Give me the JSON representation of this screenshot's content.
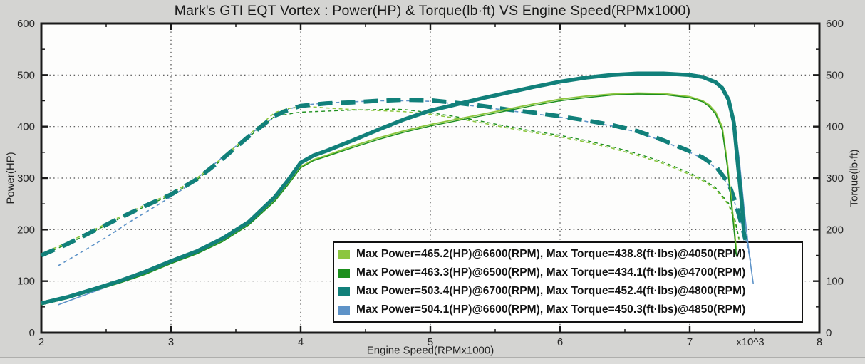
{
  "title": "Mark's GTI EQT Vortex : Power(HP) & Torque(lb·ft) VS Engine Speed(RPMx1000)",
  "axes": {
    "x": {
      "label": "Engine Speed(RPMx1000)",
      "min": 2,
      "max": 8,
      "major_ticks": [
        2,
        3,
        4,
        5,
        6,
        7,
        8
      ],
      "minor_ticks": [
        2.5,
        3.5,
        4.5,
        5.5,
        6.5,
        7.5
      ],
      "exponent_label": "x10^3"
    },
    "y_left": {
      "label": "Power(HP)",
      "min": 0,
      "max": 600,
      "major_ticks": [
        0,
        100,
        200,
        300,
        400,
        500,
        600
      ],
      "minor_ticks": [
        50,
        150,
        250,
        350,
        450,
        550
      ]
    },
    "y_right": {
      "label": "Torque(lb·ft)",
      "min": 0,
      "max": 600,
      "major_ticks": [
        0,
        100,
        200,
        300,
        400,
        500,
        600
      ],
      "minor_ticks": [
        50,
        150,
        250,
        350,
        450,
        550
      ]
    }
  },
  "legend": {
    "items": [
      {
        "color": "#8cc63f",
        "label": "Max Power=465.2(HP)@6600(RPM), Max Torque=438.8(ft·lbs)@4050(RPM)"
      },
      {
        "color": "#1d8f1d",
        "label": "Max Power=463.3(HP)@6500(RPM), Max Torque=434.1(ft·lbs)@4700(RPM)"
      },
      {
        "color": "#11807a",
        "label": "Max Power=503.4(HP)@6700(RPM), Max Torque=452.4(ft·lbs)@4800(RPM)"
      },
      {
        "color": "#5e93c8",
        "label": "Max Power=504.1(HP)@6600(RPM), Max Torque=450.3(ft·lbs)@4850(RPM)"
      }
    ]
  },
  "colors": {
    "background": "#d4d4d2",
    "plot_background": "#fdfdfc",
    "frame": "#1a1a1a",
    "grid": "#4a4a4a",
    "tick_label": "#2a2a2a"
  },
  "chart_data": {
    "type": "line",
    "title": "Mark's GTI EQT Vortex : Power(HP) & Torque(lb·ft) VS Engine Speed(RPMx1000)",
    "xlabel": "Engine Speed(RPMx1000)",
    "ylabel_left": "Power(HP)",
    "ylabel_right": "Torque(lb·ft)",
    "xlim": [
      2,
      8
    ],
    "ylim": [
      0,
      600
    ],
    "grid": "dotted",
    "legend_position": "lower-right",
    "peaks": [
      {
        "run": "run1",
        "max_power_hp": 465.2,
        "max_power_rpm": 6600,
        "max_torque_ftlbs": 438.8,
        "max_torque_rpm": 4050
      },
      {
        "run": "run2",
        "max_power_hp": 463.3,
        "max_power_rpm": 6500,
        "max_torque_ftlbs": 434.1,
        "max_torque_rpm": 4700
      },
      {
        "run": "run3",
        "max_power_hp": 503.4,
        "max_power_rpm": 6700,
        "max_torque_ftlbs": 452.4,
        "max_torque_rpm": 4800
      },
      {
        "run": "run4",
        "max_power_hp": 504.1,
        "max_power_rpm": 6600,
        "max_torque_ftlbs": 450.3,
        "max_torque_rpm": 4850
      }
    ],
    "series": [
      {
        "name": "run4-torque",
        "axis": "torque",
        "color": "#5e93c8",
        "style": "dashed",
        "width": 1.6,
        "points": [
          [
            2.13,
            130
          ],
          [
            2.3,
            155
          ],
          [
            2.5,
            185
          ],
          [
            2.7,
            218
          ],
          [
            2.9,
            248
          ],
          [
            3.1,
            280
          ],
          [
            3.3,
            320
          ],
          [
            3.5,
            362
          ],
          [
            3.7,
            403
          ],
          [
            3.9,
            433
          ],
          [
            4.0,
            441
          ],
          [
            4.2,
            446
          ],
          [
            4.4,
            448
          ],
          [
            4.6,
            450
          ],
          [
            4.85,
            450
          ],
          [
            5.0,
            449
          ],
          [
            5.2,
            444
          ],
          [
            5.4,
            438
          ],
          [
            5.6,
            431
          ],
          [
            5.8,
            425
          ],
          [
            6.0,
            418
          ],
          [
            6.2,
            410
          ],
          [
            6.4,
            401
          ],
          [
            6.6,
            389
          ],
          [
            6.8,
            371
          ],
          [
            7.0,
            350
          ],
          [
            7.1,
            338
          ],
          [
            7.2,
            320
          ],
          [
            7.3,
            286
          ],
          [
            7.35,
            250
          ],
          [
            7.42,
            195
          ],
          [
            7.47,
            140
          ]
        ]
      },
      {
        "name": "run1-torque",
        "axis": "torque",
        "color": "#8cc63f",
        "style": "dashed",
        "width": 1.6,
        "points": [
          [
            2.0,
            153
          ],
          [
            2.2,
            175
          ],
          [
            2.4,
            199
          ],
          [
            2.6,
            224
          ],
          [
            2.8,
            248
          ],
          [
            3.0,
            270
          ],
          [
            3.2,
            300
          ],
          [
            3.4,
            340
          ],
          [
            3.6,
            384
          ],
          [
            3.8,
            427
          ],
          [
            3.9,
            435
          ],
          [
            4.05,
            439
          ],
          [
            4.2,
            436
          ],
          [
            4.4,
            433
          ],
          [
            4.6,
            431
          ],
          [
            4.8,
            429
          ],
          [
            5.0,
            424
          ],
          [
            5.2,
            416
          ],
          [
            5.4,
            407
          ],
          [
            5.6,
            397
          ],
          [
            5.8,
            388
          ],
          [
            6.0,
            380
          ],
          [
            6.2,
            370
          ],
          [
            6.4,
            358
          ],
          [
            6.6,
            344
          ],
          [
            6.8,
            328
          ],
          [
            7.0,
            307
          ],
          [
            7.1,
            295
          ],
          [
            7.2,
            278
          ],
          [
            7.3,
            248
          ],
          [
            7.35,
            215
          ],
          [
            7.38,
            180
          ]
        ]
      },
      {
        "name": "run2-torque",
        "axis": "torque",
        "color": "#1d8f1d",
        "style": "dashed",
        "width": 1.4,
        "points": [
          [
            2.0,
            150
          ],
          [
            2.2,
            172
          ],
          [
            2.4,
            196
          ],
          [
            2.6,
            221
          ],
          [
            2.8,
            245
          ],
          [
            3.0,
            267
          ],
          [
            3.2,
            297
          ],
          [
            3.4,
            337
          ],
          [
            3.6,
            380
          ],
          [
            3.8,
            420
          ],
          [
            4.0,
            428
          ],
          [
            4.2,
            430
          ],
          [
            4.4,
            432
          ],
          [
            4.6,
            433
          ],
          [
            4.7,
            434
          ],
          [
            4.8,
            433
          ],
          [
            5.0,
            427
          ],
          [
            5.2,
            419
          ],
          [
            5.4,
            410
          ],
          [
            5.6,
            400
          ],
          [
            5.8,
            391
          ],
          [
            6.0,
            383
          ],
          [
            6.2,
            373
          ],
          [
            6.4,
            361
          ],
          [
            6.6,
            347
          ],
          [
            6.8,
            331
          ],
          [
            7.0,
            310
          ],
          [
            7.1,
            298
          ],
          [
            7.2,
            281
          ],
          [
            7.3,
            251
          ],
          [
            7.35,
            218
          ],
          [
            7.38,
            183
          ]
        ]
      },
      {
        "name": "run3-torque",
        "axis": "torque",
        "color": "#11807a",
        "style": "dashed-thick",
        "width": 6,
        "points": [
          [
            2.0,
            150
          ],
          [
            2.2,
            172
          ],
          [
            2.4,
            197
          ],
          [
            2.6,
            222
          ],
          [
            2.8,
            246
          ],
          [
            3.0,
            268
          ],
          [
            3.2,
            298
          ],
          [
            3.4,
            338
          ],
          [
            3.6,
            381
          ],
          [
            3.8,
            421
          ],
          [
            3.9,
            432
          ],
          [
            4.0,
            440
          ],
          [
            4.2,
            445
          ],
          [
            4.4,
            447
          ],
          [
            4.6,
            450
          ],
          [
            4.8,
            452
          ],
          [
            5.0,
            451
          ],
          [
            5.2,
            446
          ],
          [
            5.4,
            440
          ],
          [
            5.6,
            433
          ],
          [
            5.8,
            427
          ],
          [
            6.0,
            420
          ],
          [
            6.2,
            412
          ],
          [
            6.4,
            403
          ],
          [
            6.6,
            391
          ],
          [
            6.8,
            373
          ],
          [
            7.0,
            352
          ],
          [
            7.1,
            340
          ],
          [
            7.2,
            323
          ],
          [
            7.3,
            290
          ],
          [
            7.35,
            255
          ],
          [
            7.4,
            210
          ],
          [
            7.43,
            180
          ]
        ]
      },
      {
        "name": "run4-power",
        "axis": "power",
        "color": "#5e93c8",
        "style": "solid",
        "width": 1.6,
        "points": [
          [
            2.13,
            54
          ],
          [
            2.3,
            70
          ],
          [
            2.5,
            88
          ],
          [
            2.7,
            105
          ],
          [
            2.9,
            124
          ],
          [
            3.1,
            146
          ],
          [
            3.3,
            168
          ],
          [
            3.5,
            196
          ],
          [
            3.7,
            235
          ],
          [
            3.9,
            296
          ],
          [
            4.0,
            331
          ],
          [
            4.2,
            354
          ],
          [
            4.4,
            374
          ],
          [
            4.6,
            395
          ],
          [
            4.8,
            415
          ],
          [
            5.0,
            432
          ],
          [
            5.2,
            444
          ],
          [
            5.4,
            456
          ],
          [
            5.6,
            467
          ],
          [
            5.8,
            478
          ],
          [
            6.0,
            488
          ],
          [
            6.2,
            496
          ],
          [
            6.4,
            501
          ],
          [
            6.6,
            504
          ],
          [
            6.8,
            503
          ],
          [
            7.0,
            501
          ],
          [
            7.1,
            497
          ],
          [
            7.2,
            487
          ],
          [
            7.25,
            476
          ],
          [
            7.3,
            455
          ],
          [
            7.34,
            415
          ],
          [
            7.38,
            340
          ],
          [
            7.42,
            240
          ],
          [
            7.46,
            150
          ],
          [
            7.49,
            95
          ]
        ]
      },
      {
        "name": "run1-power",
        "axis": "power",
        "color": "#8cc63f",
        "style": "solid",
        "width": 2,
        "points": [
          [
            2.0,
            55
          ],
          [
            2.2,
            67
          ],
          [
            2.4,
            82
          ],
          [
            2.6,
            97
          ],
          [
            2.8,
            115
          ],
          [
            3.0,
            136
          ],
          [
            3.2,
            155
          ],
          [
            3.4,
            179
          ],
          [
            3.6,
            211
          ],
          [
            3.8,
            257
          ],
          [
            3.9,
            288
          ],
          [
            4.0,
            322
          ],
          [
            4.1,
            336
          ],
          [
            4.2,
            344
          ],
          [
            4.4,
            362
          ],
          [
            4.6,
            378
          ],
          [
            4.8,
            392
          ],
          [
            5.0,
            404
          ],
          [
            5.2,
            414
          ],
          [
            5.4,
            424
          ],
          [
            5.6,
            434
          ],
          [
            5.8,
            444
          ],
          [
            6.0,
            453
          ],
          [
            6.2,
            459
          ],
          [
            6.4,
            463
          ],
          [
            6.6,
            465
          ],
          [
            6.8,
            464
          ],
          [
            7.0,
            458
          ],
          [
            7.1,
            450
          ],
          [
            7.15,
            442
          ],
          [
            7.2,
            428
          ],
          [
            7.25,
            400
          ],
          [
            7.29,
            330
          ],
          [
            7.33,
            235
          ],
          [
            7.36,
            160
          ]
        ]
      },
      {
        "name": "run2-power",
        "axis": "power",
        "color": "#1d8f1d",
        "style": "solid",
        "width": 1.4,
        "points": [
          [
            2.0,
            54
          ],
          [
            2.2,
            66
          ],
          [
            2.4,
            81
          ],
          [
            2.6,
            96
          ],
          [
            2.8,
            113
          ],
          [
            3.0,
            134
          ],
          [
            3.2,
            153
          ],
          [
            3.4,
            177
          ],
          [
            3.6,
            209
          ],
          [
            3.8,
            255
          ],
          [
            3.9,
            286
          ],
          [
            4.0,
            320
          ],
          [
            4.1,
            334
          ],
          [
            4.2,
            342
          ],
          [
            4.4,
            359
          ],
          [
            4.6,
            375
          ],
          [
            4.8,
            389
          ],
          [
            5.0,
            401
          ],
          [
            5.2,
            411
          ],
          [
            5.4,
            421
          ],
          [
            5.6,
            431
          ],
          [
            5.8,
            441
          ],
          [
            6.0,
            450
          ],
          [
            6.2,
            456
          ],
          [
            6.4,
            461
          ],
          [
            6.6,
            463
          ],
          [
            6.8,
            462
          ],
          [
            7.0,
            456
          ],
          [
            7.1,
            448
          ],
          [
            7.15,
            439
          ],
          [
            7.2,
            424
          ],
          [
            7.25,
            394
          ],
          [
            7.29,
            322
          ],
          [
            7.33,
            228
          ],
          [
            7.36,
            150
          ]
        ]
      },
      {
        "name": "run3-power",
        "axis": "power",
        "color": "#11807a",
        "style": "solid",
        "width": 5.5,
        "points": [
          [
            2.0,
            57
          ],
          [
            2.2,
            69
          ],
          [
            2.4,
            84
          ],
          [
            2.6,
            100
          ],
          [
            2.8,
            118
          ],
          [
            3.0,
            139
          ],
          [
            3.2,
            158
          ],
          [
            3.4,
            183
          ],
          [
            3.6,
            215
          ],
          [
            3.8,
            263
          ],
          [
            3.9,
            295
          ],
          [
            4.0,
            330
          ],
          [
            4.1,
            344
          ],
          [
            4.2,
            353
          ],
          [
            4.4,
            373
          ],
          [
            4.6,
            394
          ],
          [
            4.8,
            414
          ],
          [
            5.0,
            431
          ],
          [
            5.2,
            443
          ],
          [
            5.4,
            455
          ],
          [
            5.6,
            466
          ],
          [
            5.8,
            477
          ],
          [
            6.0,
            487
          ],
          [
            6.2,
            495
          ],
          [
            6.4,
            500
          ],
          [
            6.6,
            503
          ],
          [
            6.8,
            503
          ],
          [
            7.0,
            500
          ],
          [
            7.1,
            496
          ],
          [
            7.2,
            486
          ],
          [
            7.25,
            475
          ],
          [
            7.3,
            452
          ],
          [
            7.34,
            408
          ],
          [
            7.37,
            330
          ],
          [
            7.4,
            255
          ],
          [
            7.42,
            190
          ]
        ]
      }
    ]
  }
}
